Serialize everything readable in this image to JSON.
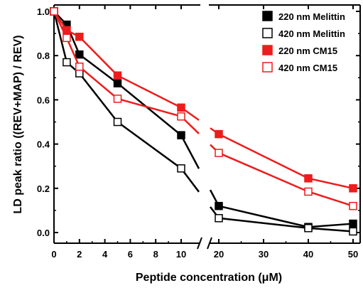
{
  "chart_data": {
    "type": "line",
    "xlabel": "Peptide concentration (μM)",
    "ylabel": "LD peak ratio ((REV+MAP) / REV)",
    "x_ticks": [
      "0",
      "2",
      "4",
      "6",
      "8",
      "10",
      "20",
      "30",
      "40",
      "50"
    ],
    "y_ticks": [
      "0.0",
      "0.2",
      "0.4",
      "0.6",
      "0.8",
      "1.0"
    ],
    "ylim": [
      -0.03,
      1.05
    ],
    "x_break": {
      "from": 10,
      "to": 20,
      "symbol": "//"
    },
    "legend_position": "top-right",
    "grid": false,
    "series": [
      {
        "name": "220 nm Melittin",
        "color": "#000000",
        "marker": "filled-square",
        "x": [
          0,
          1,
          2,
          5,
          10,
          20,
          40,
          50
        ],
        "y": [
          1.0,
          0.94,
          0.805,
          0.675,
          0.44,
          0.12,
          0.025,
          0.04
        ]
      },
      {
        "name": "420 nm Melittin",
        "color": "#000000",
        "marker": "open-square",
        "x": [
          0,
          1,
          2,
          5,
          10,
          20,
          40,
          50
        ],
        "y": [
          1.0,
          0.77,
          0.72,
          0.5,
          0.29,
          0.065,
          0.02,
          0.005
        ]
      },
      {
        "name": "220 nm CM15",
        "color": "#ee1c1c",
        "marker": "filled-square",
        "x": [
          0,
          1,
          2,
          5,
          10,
          20,
          40,
          50
        ],
        "y": [
          1.0,
          0.915,
          0.885,
          0.71,
          0.565,
          0.445,
          0.245,
          0.2
        ]
      },
      {
        "name": "420 nm CM15",
        "color": "#ee1c1c",
        "marker": "open-square",
        "x": [
          0,
          1,
          2,
          5,
          10,
          20,
          40,
          50
        ],
        "y": [
          1.0,
          0.88,
          0.75,
          0.605,
          0.525,
          0.36,
          0.185,
          0.12
        ]
      }
    ]
  }
}
